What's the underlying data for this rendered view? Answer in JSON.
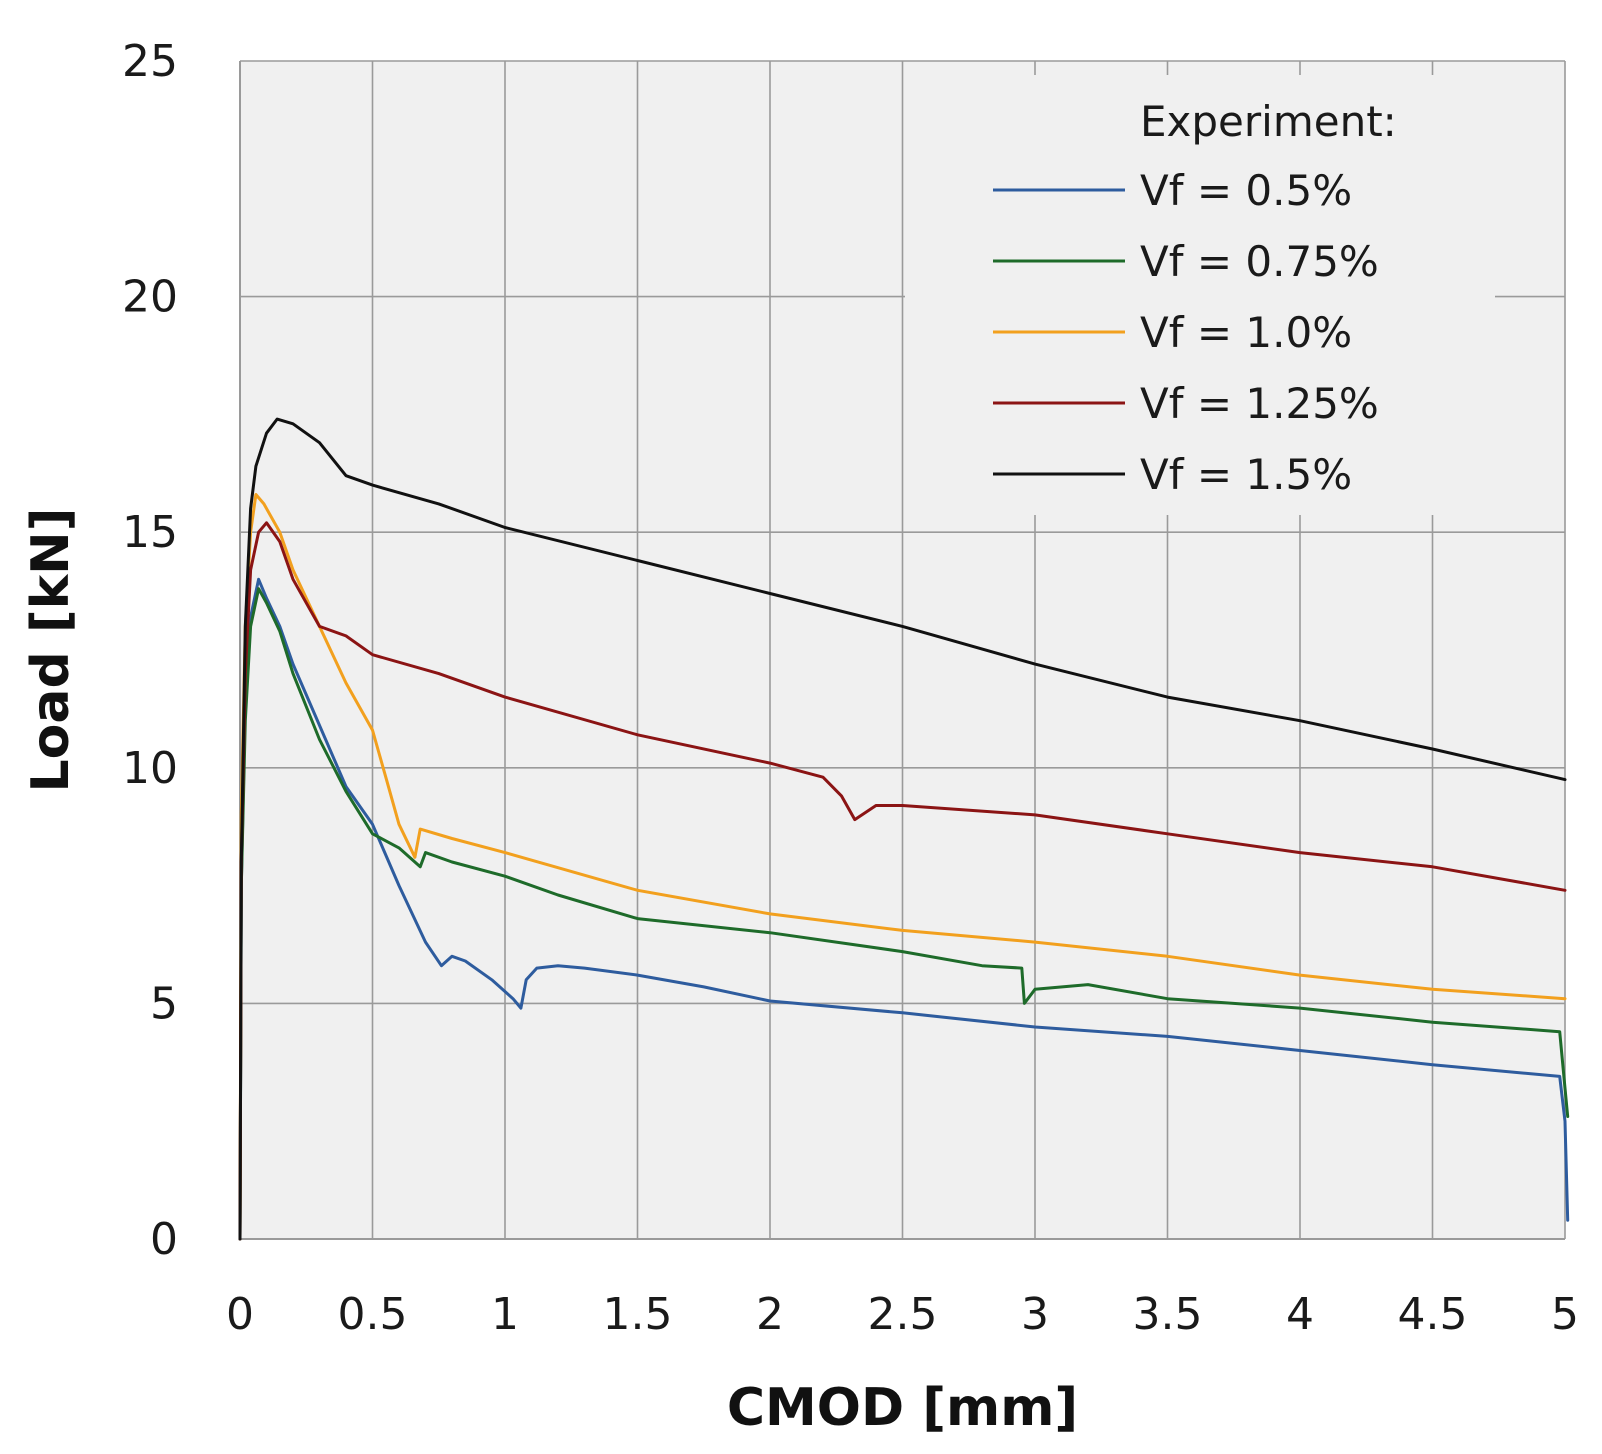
{
  "chart_data": {
    "type": "line",
    "xlabel": "CMOD [mm]",
    "ylabel": "Load [kN]",
    "xlim": [
      0,
      5
    ],
    "ylim": [
      0,
      25
    ],
    "xticks": [
      0,
      0.5,
      1,
      1.5,
      2,
      2.5,
      3,
      3.5,
      4,
      4.5,
      5
    ],
    "xtick_labels": [
      "0",
      "0.5",
      "1",
      "1.5",
      "2",
      "2.5",
      "3",
      "3.5",
      "4",
      "4.5",
      "5"
    ],
    "yticks": [
      0,
      5,
      10,
      15,
      20,
      25
    ],
    "ytick_labels": [
      "0",
      "5",
      "10",
      "15",
      "20",
      "25"
    ],
    "grid": true,
    "legend": {
      "title": "Experiment:",
      "placement": "top-right"
    },
    "series": [
      {
        "name": "Vf = 0.5%",
        "color": "#2e5c9e",
        "points": [
          [
            0,
            0
          ],
          [
            0.005,
            7.5
          ],
          [
            0.02,
            11.5
          ],
          [
            0.04,
            13.2
          ],
          [
            0.07,
            14.0
          ],
          [
            0.1,
            13.6
          ],
          [
            0.15,
            13.0
          ],
          [
            0.2,
            12.2
          ],
          [
            0.3,
            10.9
          ],
          [
            0.4,
            9.6
          ],
          [
            0.5,
            8.8
          ],
          [
            0.6,
            7.5
          ],
          [
            0.7,
            6.3
          ],
          [
            0.76,
            5.8
          ],
          [
            0.8,
            6.0
          ],
          [
            0.85,
            5.9
          ],
          [
            0.95,
            5.5
          ],
          [
            1.03,
            5.1
          ],
          [
            1.06,
            4.9
          ],
          [
            1.08,
            5.5
          ],
          [
            1.12,
            5.75
          ],
          [
            1.2,
            5.8
          ],
          [
            1.3,
            5.75
          ],
          [
            1.5,
            5.6
          ],
          [
            1.75,
            5.35
          ],
          [
            2.0,
            5.05
          ],
          [
            2.5,
            4.8
          ],
          [
            3.0,
            4.5
          ],
          [
            3.5,
            4.3
          ],
          [
            4.0,
            4.0
          ],
          [
            4.5,
            3.7
          ],
          [
            4.98,
            3.45
          ],
          [
            5.0,
            2.5
          ],
          [
            5.01,
            0.4
          ]
        ]
      },
      {
        "name": "Vf = 0.75%",
        "color": "#1e6b2a",
        "points": [
          [
            0,
            0
          ],
          [
            0.005,
            7.5
          ],
          [
            0.02,
            11.0
          ],
          [
            0.04,
            13.0
          ],
          [
            0.07,
            13.8
          ],
          [
            0.1,
            13.5
          ],
          [
            0.15,
            12.9
          ],
          [
            0.2,
            12.0
          ],
          [
            0.3,
            10.6
          ],
          [
            0.4,
            9.5
          ],
          [
            0.5,
            8.6
          ],
          [
            0.6,
            8.3
          ],
          [
            0.68,
            7.9
          ],
          [
            0.7,
            8.2
          ],
          [
            0.8,
            8.0
          ],
          [
            1.0,
            7.7
          ],
          [
            1.2,
            7.3
          ],
          [
            1.5,
            6.8
          ],
          [
            2.0,
            6.5
          ],
          [
            2.5,
            6.1
          ],
          [
            2.8,
            5.8
          ],
          [
            2.95,
            5.75
          ],
          [
            2.96,
            5.0
          ],
          [
            3.0,
            5.3
          ],
          [
            3.2,
            5.4
          ],
          [
            3.5,
            5.1
          ],
          [
            4.0,
            4.9
          ],
          [
            4.5,
            4.6
          ],
          [
            4.98,
            4.4
          ],
          [
            5.0,
            3.2
          ],
          [
            5.01,
            2.6
          ]
        ]
      },
      {
        "name": "Vf = 1.0%",
        "color": "#f2a01e",
        "points": [
          [
            0,
            0
          ],
          [
            0.005,
            9.0
          ],
          [
            0.02,
            13.0
          ],
          [
            0.04,
            15.0
          ],
          [
            0.06,
            15.8
          ],
          [
            0.09,
            15.6
          ],
          [
            0.15,
            15.0
          ],
          [
            0.2,
            14.2
          ],
          [
            0.3,
            13.0
          ],
          [
            0.4,
            11.8
          ],
          [
            0.5,
            10.8
          ],
          [
            0.55,
            9.8
          ],
          [
            0.6,
            8.8
          ],
          [
            0.66,
            8.1
          ],
          [
            0.68,
            8.7
          ],
          [
            0.8,
            8.5
          ],
          [
            1.0,
            8.2
          ],
          [
            1.5,
            7.4
          ],
          [
            2.0,
            6.9
          ],
          [
            2.5,
            6.55
          ],
          [
            3.0,
            6.3
          ],
          [
            3.5,
            6.0
          ],
          [
            4.0,
            5.6
          ],
          [
            4.5,
            5.3
          ],
          [
            5.0,
            5.1
          ]
        ]
      },
      {
        "name": "Vf = 1.25%",
        "color": "#8b1414",
        "points": [
          [
            0,
            0
          ],
          [
            0.005,
            8.0
          ],
          [
            0.02,
            12.0
          ],
          [
            0.04,
            14.2
          ],
          [
            0.07,
            15.0
          ],
          [
            0.1,
            15.2
          ],
          [
            0.15,
            14.8
          ],
          [
            0.2,
            14.0
          ],
          [
            0.3,
            13.0
          ],
          [
            0.4,
            12.8
          ],
          [
            0.5,
            12.4
          ],
          [
            0.75,
            12.0
          ],
          [
            1.0,
            11.5
          ],
          [
            1.5,
            10.7
          ],
          [
            2.0,
            10.1
          ],
          [
            2.2,
            9.8
          ],
          [
            2.27,
            9.4
          ],
          [
            2.32,
            8.9
          ],
          [
            2.4,
            9.2
          ],
          [
            2.5,
            9.2
          ],
          [
            3.0,
            9.0
          ],
          [
            3.5,
            8.6
          ],
          [
            4.0,
            8.2
          ],
          [
            4.5,
            7.9
          ],
          [
            5.0,
            7.4
          ]
        ]
      },
      {
        "name": "Vf = 1.5%",
        "color": "#111111",
        "points": [
          [
            0,
            0
          ],
          [
            0.005,
            8.0
          ],
          [
            0.02,
            13.0
          ],
          [
            0.04,
            15.5
          ],
          [
            0.06,
            16.4
          ],
          [
            0.1,
            17.1
          ],
          [
            0.14,
            17.4
          ],
          [
            0.2,
            17.3
          ],
          [
            0.3,
            16.9
          ],
          [
            0.4,
            16.2
          ],
          [
            0.5,
            16.0
          ],
          [
            0.75,
            15.6
          ],
          [
            1.0,
            15.1
          ],
          [
            1.5,
            14.4
          ],
          [
            2.0,
            13.7
          ],
          [
            2.5,
            13.0
          ],
          [
            3.0,
            12.2
          ],
          [
            3.5,
            11.5
          ],
          [
            4.0,
            11.0
          ],
          [
            4.5,
            10.4
          ],
          [
            5.0,
            9.75
          ]
        ]
      }
    ]
  }
}
